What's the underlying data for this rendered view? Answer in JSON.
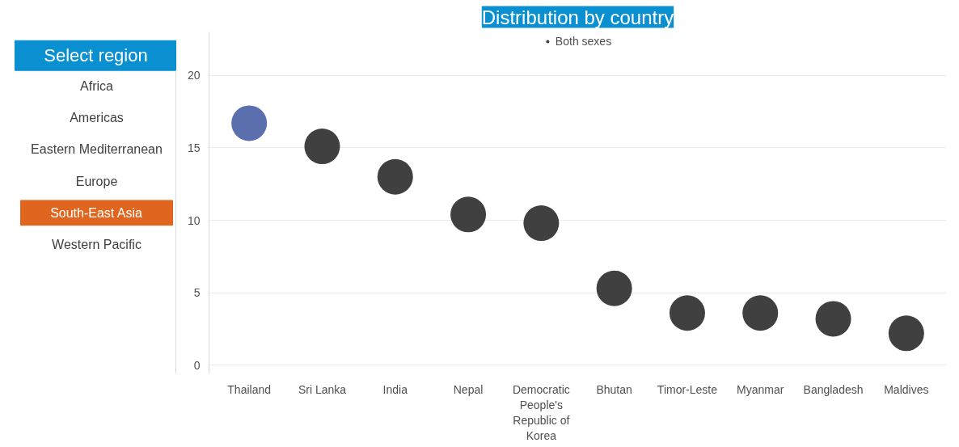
{
  "chart_data": [
    {
      "type": "other",
      "title": "Select region",
      "annotations": [
        "Africa",
        "Americas",
        "Eastern Mediterranean",
        "Europe",
        "South-East Asia",
        "Western Pacific"
      ],
      "colors": [
        null,
        null,
        null,
        null,
        "#e0661f",
        null
      ]
    },
    {
      "type": "scatter",
      "title": "Distribution by country",
      "categories": [
        "Thailand",
        "Sri Lanka",
        "India",
        "Nepal",
        "Democratic People's Republic of Korea",
        "Bhutan",
        "Timor-Leste",
        "Myanmar",
        "Bangladesh",
        "Maldives"
      ],
      "series": [
        {
          "name": "Both sexes",
          "color": "#404040",
          "colors": [
            "#5b6fae",
            "#404040",
            "#404040",
            "#404040",
            "#404040",
            "#404040",
            "#404040",
            "#404040",
            "#404040",
            "#404040"
          ],
          "values": [
            16.7,
            15.1,
            13.0,
            10.4,
            9.8,
            5.3,
            3.6,
            3.6,
            3.2,
            2.2
          ]
        }
      ],
      "ylim": [
        -0.6,
        23
      ],
      "yticks": [
        0,
        5,
        10,
        15,
        20
      ],
      "grid": "y",
      "legend": "top",
      "marker": "circle"
    }
  ]
}
